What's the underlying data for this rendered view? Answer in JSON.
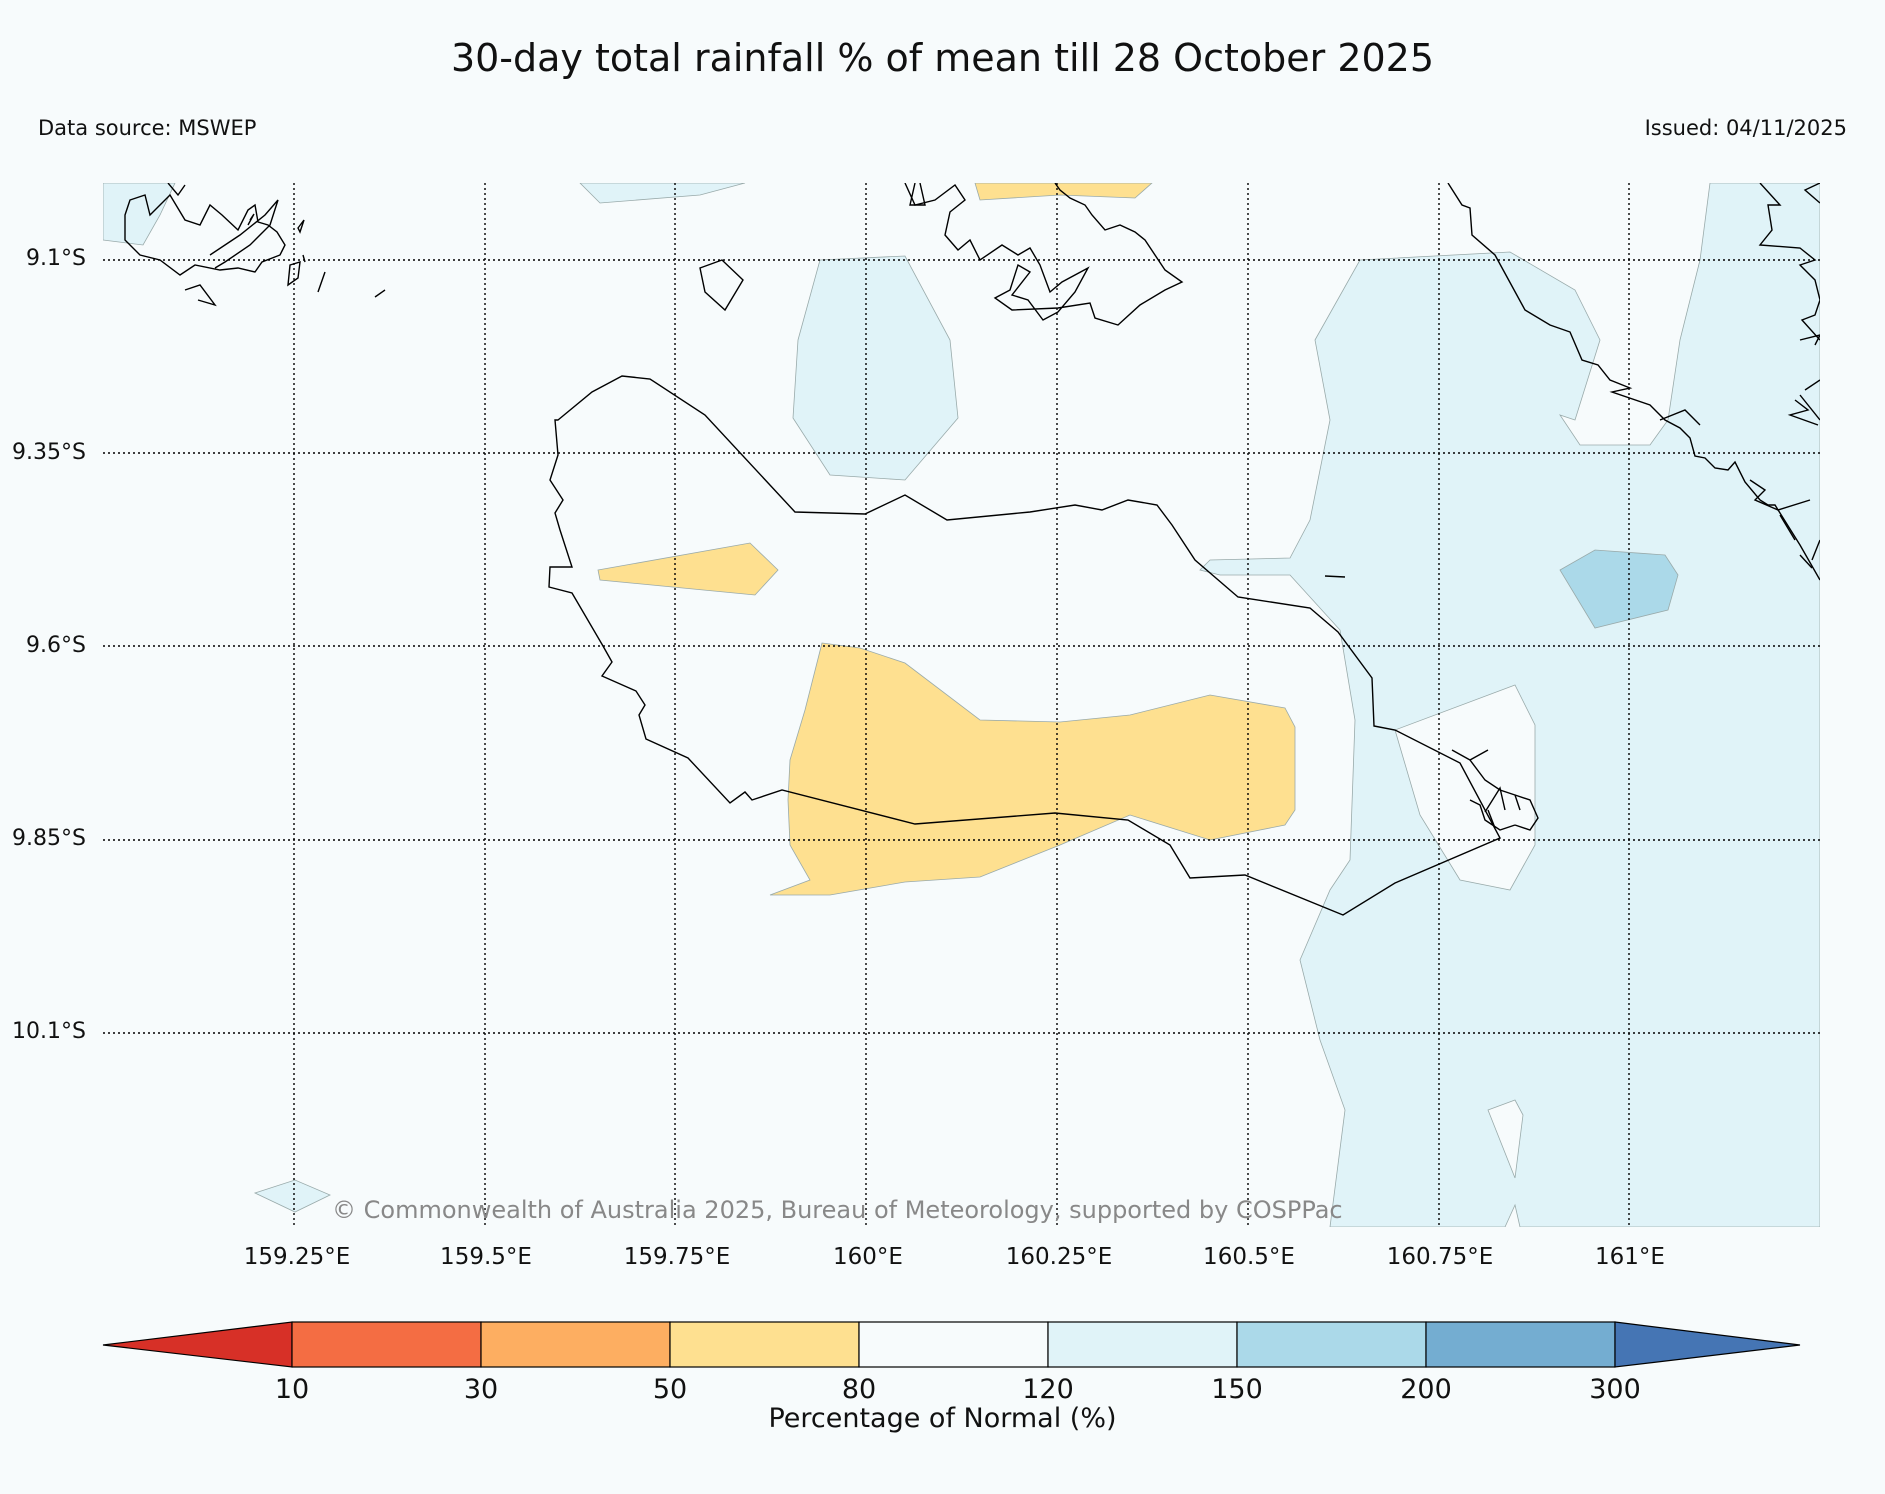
{
  "title": "30-day total rainfall % of mean till 28 October 2025",
  "data_source": "Data source: MSWEP",
  "issued": "Issued: 04/11/2025",
  "copyright": "© Commonwealth of Australia 2025, Bureau of Meteorology, supported by COSPPac",
  "lat_labels": [
    "9.1°S",
    "9.35°S",
    "9.6°S",
    "9.85°S",
    "10.1°S"
  ],
  "lon_labels": [
    "159.25°E",
    "159.5°E",
    "159.75°E",
    "160°E",
    "160.25°E",
    "160.5°E",
    "160.75°E",
    "161°E"
  ],
  "colorbar": {
    "label": "Percentage of Normal (%)",
    "ticks": [
      "10",
      "30",
      "50",
      "80",
      "120",
      "150",
      "200",
      "300"
    ],
    "colors": [
      "#d73027",
      "#f46d43",
      "#fdae61",
      "#fee090",
      "#f7fbfc",
      "#e0f3f8",
      "#abd9e9",
      "#74add1",
      "#4575b4"
    ]
  },
  "chart_data": {
    "type": "heatmap",
    "title": "30-day total rainfall % of mean till 28 October 2025",
    "variable": "Percentage of Normal (%)",
    "lon_range": [
      159.1,
      161.25
    ],
    "lat_range": [
      -10.3,
      -9.0
    ],
    "bins": [
      10,
      30,
      50,
      80,
      120,
      150,
      200,
      300
    ]
  }
}
